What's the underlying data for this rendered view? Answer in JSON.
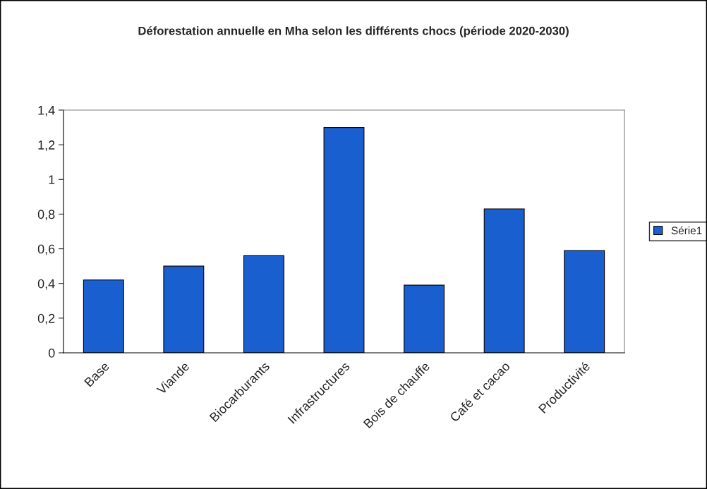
{
  "chart_data": {
    "type": "bar",
    "title": "Déforestation annuelle en Mha selon les différents chocs (période 2020-2030)",
    "categories": [
      "Base",
      "Viande",
      "Biocarburants",
      "Infrastructures",
      "Bois de chauffe",
      "Café et cacao",
      "Productivité"
    ],
    "series": [
      {
        "name": "Série1",
        "color": "#1a5fd0",
        "values": [
          0.42,
          0.5,
          0.56,
          1.3,
          0.39,
          0.83,
          0.59
        ]
      }
    ],
    "ylim": [
      0,
      1.4
    ],
    "yticks": [
      0,
      {
        "value": 0.2,
        "label": "0,2"
      },
      {
        "value": 0.4,
        "label": "0,4"
      },
      {
        "value": 0.6,
        "label": "0,6"
      },
      {
        "value": 0.8,
        "label": "0,8"
      },
      1,
      {
        "value": 1.2,
        "label": "1,2"
      },
      {
        "value": 1.4,
        "label": "1,4"
      }
    ],
    "grid": false,
    "legend": "right"
  }
}
